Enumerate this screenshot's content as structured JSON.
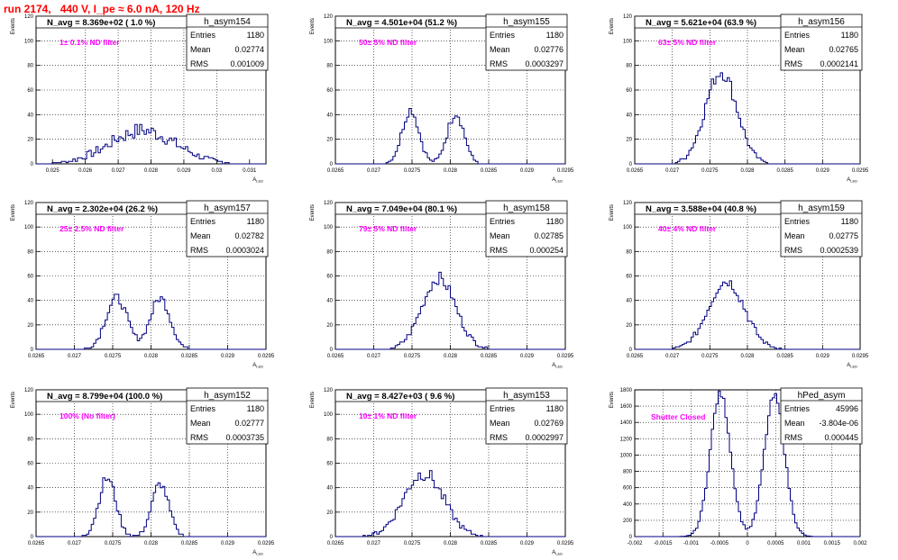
{
  "page": {
    "title": "run 2174,   440 V, I_pe ≈ 6.0 nA, 120 Hz"
  },
  "chart_data": [
    {
      "type": "histogram",
      "name": "h_asym154",
      "navg": "N_avg = 8.369e+02 ( 1.0 %)",
      "filter": "1± 0.1% ND filter",
      "stats": [
        [
          "Entries",
          "1180"
        ],
        [
          "Mean",
          "0.02774"
        ],
        [
          "RMS",
          "0.001009"
        ]
      ],
      "xlim": [
        0.0245,
        0.0315
      ],
      "ylim": [
        0,
        120
      ],
      "ylabel": "Events",
      "xlabel": "A_LED",
      "xticks": [
        "0.025",
        "0.026",
        "0.027",
        "0.028",
        "0.029",
        "0.03",
        "0.031"
      ],
      "xtickvals": [
        0.025,
        0.026,
        0.027,
        0.028,
        0.029,
        0.03,
        0.031
      ],
      "yticks": [
        0,
        20,
        40,
        60,
        80,
        100,
        120
      ],
      "shape": {
        "kind": "broad",
        "mean": 0.02774,
        "sigma": 0.00101,
        "height": 27,
        "noise": 6
      }
    },
    {
      "type": "histogram",
      "name": "h_asym155",
      "navg": "N_avg = 4.501e+04 (51.2 %)",
      "filter": "50± 5% ND filter",
      "stats": [
        [
          "Entries",
          "1180"
        ],
        [
          "Mean",
          "0.02776"
        ],
        [
          "RMS",
          "0.0003297"
        ]
      ],
      "xlim": [
        0.0265,
        0.0295
      ],
      "ylim": [
        0,
        120
      ],
      "ylabel": "Events",
      "xlabel": "A_LED",
      "xticks": [
        "0.0265",
        "0.027",
        "0.0275",
        "0.028",
        "0.0285",
        "0.029",
        "0.0295"
      ],
      "xtickvals": [
        0.0265,
        0.027,
        0.0275,
        0.028,
        0.0285,
        0.029,
        0.0295
      ],
      "yticks": [
        0,
        20,
        40,
        60,
        80,
        100,
        120
      ],
      "shape": {
        "kind": "double",
        "peaks": [
          [
            0.02748,
            0.00011,
            44
          ],
          [
            0.02807,
            0.00011,
            41
          ]
        ],
        "noise": 4
      }
    },
    {
      "type": "histogram",
      "name": "h_asym156",
      "navg": "N_avg = 5.621e+04 (63.9 %)",
      "filter": "63± 5% ND filter",
      "stats": [
        [
          "Entries",
          "1180"
        ],
        [
          "Mean",
          "0.02765"
        ],
        [
          "RMS",
          "0.0002141"
        ]
      ],
      "xlim": [
        0.0265,
        0.0295
      ],
      "ylim": [
        0,
        120
      ],
      "ylabel": "Events",
      "xlabel": "A_LED",
      "xticks": [
        "0.0265",
        "0.027",
        "0.0275",
        "0.028",
        "0.0285",
        "0.029",
        "0.0295"
      ],
      "xtickvals": [
        0.0265,
        0.027,
        0.0275,
        0.028,
        0.0285,
        0.029,
        0.0295
      ],
      "yticks": [
        0,
        20,
        40,
        60,
        80,
        100,
        120
      ],
      "shape": {
        "kind": "single",
        "mean": 0.02765,
        "sigma": 0.00021,
        "height": 75,
        "noise": 6
      }
    },
    {
      "type": "histogram",
      "name": "h_asym157",
      "navg": "N_avg = 2.302e+04 (26.2 %)",
      "filter": "25± 2.5% ND filter",
      "stats": [
        [
          "Entries",
          "1180"
        ],
        [
          "Mean",
          "0.02782"
        ],
        [
          "RMS",
          "0.0003024"
        ]
      ],
      "xlim": [
        0.0265,
        0.0295
      ],
      "ylim": [
        0,
        120
      ],
      "ylabel": "Events",
      "xlabel": "A_LED",
      "xticks": [
        "0.0265",
        "0.027",
        "0.0275",
        "0.028",
        "0.0285",
        "0.029",
        "0.0295"
      ],
      "xtickvals": [
        0.0265,
        0.027,
        0.0275,
        0.028,
        0.0285,
        0.029,
        0.0295
      ],
      "yticks": [
        0,
        20,
        40,
        60,
        80,
        100,
        120
      ],
      "shape": {
        "kind": "double",
        "peaks": [
          [
            0.02755,
            0.00014,
            42
          ],
          [
            0.02812,
            0.00013,
            42
          ]
        ],
        "noise": 4
      }
    },
    {
      "type": "histogram",
      "name": "h_asym158",
      "navg": "N_avg = 7.049e+04 (80.1 %)",
      "filter": "79± 5% ND filter",
      "stats": [
        [
          "Entries",
          "1180"
        ],
        [
          "Mean",
          "0.02785"
        ],
        [
          "RMS",
          "0.000254"
        ]
      ],
      "xlim": [
        0.0265,
        0.0295
      ],
      "ylim": [
        0,
        120
      ],
      "ylabel": "Events",
      "xlabel": "A_LED",
      "xticks": [
        "0.0265",
        "0.027",
        "0.0275",
        "0.028",
        "0.0285",
        "0.029",
        "0.0295"
      ],
      "xtickvals": [
        0.0265,
        0.027,
        0.0275,
        0.028,
        0.0285,
        0.029,
        0.0295
      ],
      "yticks": [
        0,
        20,
        40,
        60,
        80,
        100,
        120
      ],
      "shape": {
        "kind": "single",
        "mean": 0.02785,
        "sigma": 0.00022,
        "height": 58,
        "noise": 5
      }
    },
    {
      "type": "histogram",
      "name": "h_asym159",
      "navg": "N_avg = 3.588e+04 (40.8 %)",
      "filter": "40± 4% ND filter",
      "stats": [
        [
          "Entries",
          "1180"
        ],
        [
          "Mean",
          "0.02775"
        ],
        [
          "RMS",
          "0.0002539"
        ]
      ],
      "xlim": [
        0.0265,
        0.0295
      ],
      "ylim": [
        0,
        120
      ],
      "ylabel": "Events",
      "xlabel": "A_LED",
      "xticks": [
        "0.0265",
        "0.027",
        "0.0275",
        "0.028",
        "0.0285",
        "0.029",
        "0.0295"
      ],
      "xtickvals": [
        0.0265,
        0.027,
        0.0275,
        0.028,
        0.0285,
        0.029,
        0.0295
      ],
      "yticks": [
        0,
        20,
        40,
        60,
        80,
        100,
        120
      ],
      "shape": {
        "kind": "single",
        "mean": 0.02772,
        "sigma": 0.00024,
        "height": 56,
        "noise": 5
      }
    },
    {
      "type": "histogram",
      "name": "h_asym152",
      "navg": "N_avg = 8.799e+04 (100.0 %)",
      "filter": "100% (No filter)",
      "stats": [
        [
          "Entries",
          "1180"
        ],
        [
          "Mean",
          "0.02777"
        ],
        [
          "RMS",
          "0.0003735"
        ]
      ],
      "xlim": [
        0.0265,
        0.0295
      ],
      "ylim": [
        0,
        120
      ],
      "ylabel": "Events",
      "xlabel": "A_LED",
      "xticks": [
        "0.0265",
        "0.027",
        "0.0275",
        "0.028",
        "0.0285",
        "0.029",
        "0.0295"
      ],
      "xtickvals": [
        0.0265,
        0.027,
        0.0275,
        0.028,
        0.0285,
        0.029,
        0.0295
      ],
      "yticks": [
        0,
        20,
        40,
        60,
        80,
        100,
        120
      ],
      "shape": {
        "kind": "double",
        "peaks": [
          [
            0.02743,
            0.00011,
            48
          ],
          [
            0.02812,
            0.00011,
            43
          ]
        ],
        "noise": 4
      }
    },
    {
      "type": "histogram",
      "name": "h_asym153",
      "navg": "N_avg = 8.427e+03 ( 9.6 %)",
      "filter": "10± 1% ND filter",
      "stats": [
        [
          "Entries",
          "1180"
        ],
        [
          "Mean",
          "0.02769"
        ],
        [
          "RMS",
          "0.0002997"
        ]
      ],
      "xlim": [
        0.0265,
        0.0295
      ],
      "ylim": [
        0,
        120
      ],
      "ylabel": "Events",
      "xlabel": "A_LED",
      "xticks": [
        "0.0265",
        "0.027",
        "0.0275",
        "0.028",
        "0.0285",
        "0.029",
        "0.0295"
      ],
      "xtickvals": [
        0.0265,
        0.027,
        0.0275,
        0.028,
        0.0285,
        0.029,
        0.0295
      ],
      "yticks": [
        0,
        20,
        40,
        60,
        80,
        100,
        120
      ],
      "shape": {
        "kind": "single",
        "mean": 0.02765,
        "sigma": 0.00026,
        "height": 52,
        "noise": 6
      }
    },
    {
      "type": "histogram",
      "name": "hPed_asym",
      "navg": "",
      "filter": "Shutter Closed",
      "stats": [
        [
          "Entries",
          "45996"
        ],
        [
          "Mean",
          "-3.804e-06"
        ],
        [
          "RMS",
          "0.000445"
        ]
      ],
      "xlim": [
        -0.002,
        0.002
      ],
      "ylim": [
        0,
        1800
      ],
      "ylabel": "Events",
      "xlabel": "",
      "xticks": [
        "-0.002",
        "-0.0015",
        "-0.001",
        "-0.0005",
        "0",
        "0.0005",
        "0.001",
        "0.0015",
        "0.002"
      ],
      "xtickvals": [
        -0.002,
        -0.0015,
        -0.001,
        -0.0005,
        0,
        0.0005,
        0.001,
        0.0015,
        0.002
      ],
      "yticks": [
        0,
        200,
        400,
        600,
        800,
        1000,
        1200,
        1400,
        1600,
        1800
      ],
      "shape": {
        "kind": "ped",
        "peaks": [
          [
            -0.00048,
            0.00018,
            1750
          ],
          [
            0.00048,
            0.00018,
            1720
          ]
        ],
        "noise": 50
      }
    }
  ],
  "colors": {
    "line": "#000080",
    "label": "#ff00ff",
    "title": "#ff0000",
    "grid": "#000000"
  }
}
